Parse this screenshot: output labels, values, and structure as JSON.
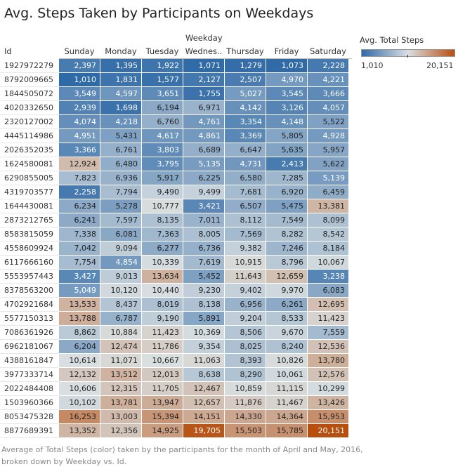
{
  "title": "Avg. Steps Taken by Participants on Weekdays",
  "column_group_label": "Weekday",
  "row_header_label": "Id",
  "legend": {
    "title": "Avg. Total Steps",
    "min_label": "1,010",
    "max_label": "20,151"
  },
  "caption": "Average of Total Steps (color) taken by the participants for the month of April and May, 2016, broken down by Weekday vs. Id.",
  "colors": {
    "low": "#2f6aa8",
    "mid": "#d9dfe1",
    "high": "#b84e0e"
  },
  "chart_data": {
    "type": "heatmap",
    "title": "Avg. Steps Taken by Participants on Weekdays",
    "x_label": "Weekday",
    "y_label": "Id",
    "color_label": "Avg. Total Steps",
    "color_range": [
      1010,
      20151
    ],
    "columns": [
      "Sunday",
      "Monday",
      "Tuesday",
      "Wednes..",
      "Thursday",
      "Friday",
      "Saturday"
    ],
    "rows": [
      {
        "id": "1927972279",
        "values": [
          2397,
          1395,
          1922,
          1071,
          1279,
          1073,
          2228
        ]
      },
      {
        "id": "8792009665",
        "values": [
          1010,
          1831,
          1577,
          2127,
          2507,
          4970,
          4221
        ]
      },
      {
        "id": "1844505072",
        "values": [
          3549,
          4597,
          3651,
          1755,
          5027,
          3545,
          3666
        ]
      },
      {
        "id": "4020332650",
        "values": [
          2939,
          1698,
          6194,
          6971,
          4142,
          3126,
          4057
        ]
      },
      {
        "id": "2320127002",
        "values": [
          4074,
          4218,
          6760,
          4761,
          3354,
          4148,
          5522
        ]
      },
      {
        "id": "4445114986",
        "values": [
          4951,
          5431,
          4617,
          4861,
          3369,
          5805,
          4928
        ]
      },
      {
        "id": "2026352035",
        "values": [
          3366,
          6761,
          3803,
          6689,
          6647,
          5635,
          5957
        ]
      },
      {
        "id": "1624580081",
        "values": [
          12924,
          6480,
          3795,
          5135,
          4731,
          2413,
          5622
        ]
      },
      {
        "id": "6290855005",
        "values": [
          7823,
          6936,
          5917,
          6225,
          6580,
          7285,
          5139
        ]
      },
      {
        "id": "4319703577",
        "values": [
          2258,
          7794,
          9490,
          9499,
          7681,
          6920,
          6459
        ]
      },
      {
        "id": "1644430081",
        "values": [
          6234,
          5278,
          10777,
          3421,
          6507,
          5475,
          13381
        ]
      },
      {
        "id": "2873212765",
        "values": [
          6241,
          7597,
          8135,
          7011,
          8112,
          7549,
          8099
        ]
      },
      {
        "id": "8583815059",
        "values": [
          7338,
          6081,
          7363,
          8005,
          7569,
          8282,
          8542
        ]
      },
      {
        "id": "4558609924",
        "values": [
          7042,
          9094,
          6277,
          6736,
          9382,
          7246,
          8184
        ]
      },
      {
        "id": "6117666160",
        "values": [
          7754,
          4854,
          10339,
          7619,
          10915,
          8796,
          10067
        ]
      },
      {
        "id": "5553957443",
        "values": [
          3427,
          9013,
          13634,
          5452,
          11643,
          12659,
          3238
        ]
      },
      {
        "id": "8378563200",
        "values": [
          5049,
          10120,
          10440,
          9230,
          9402,
          9970,
          6083
        ]
      },
      {
        "id": "4702921684",
        "values": [
          13533,
          8437,
          8019,
          8138,
          6956,
          6261,
          12695
        ]
      },
      {
        "id": "5577150313",
        "values": [
          13788,
          6787,
          9190,
          5891,
          9204,
          8533,
          11423
        ]
      },
      {
        "id": "7086361926",
        "values": [
          8862,
          10884,
          11423,
          10369,
          8506,
          9670,
          7559
        ]
      },
      {
        "id": "6962181067",
        "values": [
          6204,
          12474,
          11786,
          9354,
          8025,
          8240,
          12536
        ]
      },
      {
        "id": "4388161847",
        "values": [
          10614,
          11071,
          10667,
          11063,
          8393,
          10826,
          13780
        ]
      },
      {
        "id": "3977333714",
        "values": [
          12132,
          13512,
          12013,
          8638,
          8290,
          10061,
          12576
        ]
      },
      {
        "id": "2022484408",
        "values": [
          10606,
          12315,
          11705,
          12467,
          10859,
          11115,
          10299
        ]
      },
      {
        "id": "1503960366",
        "values": [
          10102,
          13781,
          13947,
          12657,
          11876,
          11467,
          13426
        ]
      },
      {
        "id": "8053475328",
        "values": [
          16253,
          13003,
          15394,
          14151,
          14330,
          14364,
          15953
        ]
      },
      {
        "id": "8877689391",
        "values": [
          13352,
          12356,
          14925,
          19705,
          15503,
          15785,
          20151
        ]
      }
    ]
  }
}
